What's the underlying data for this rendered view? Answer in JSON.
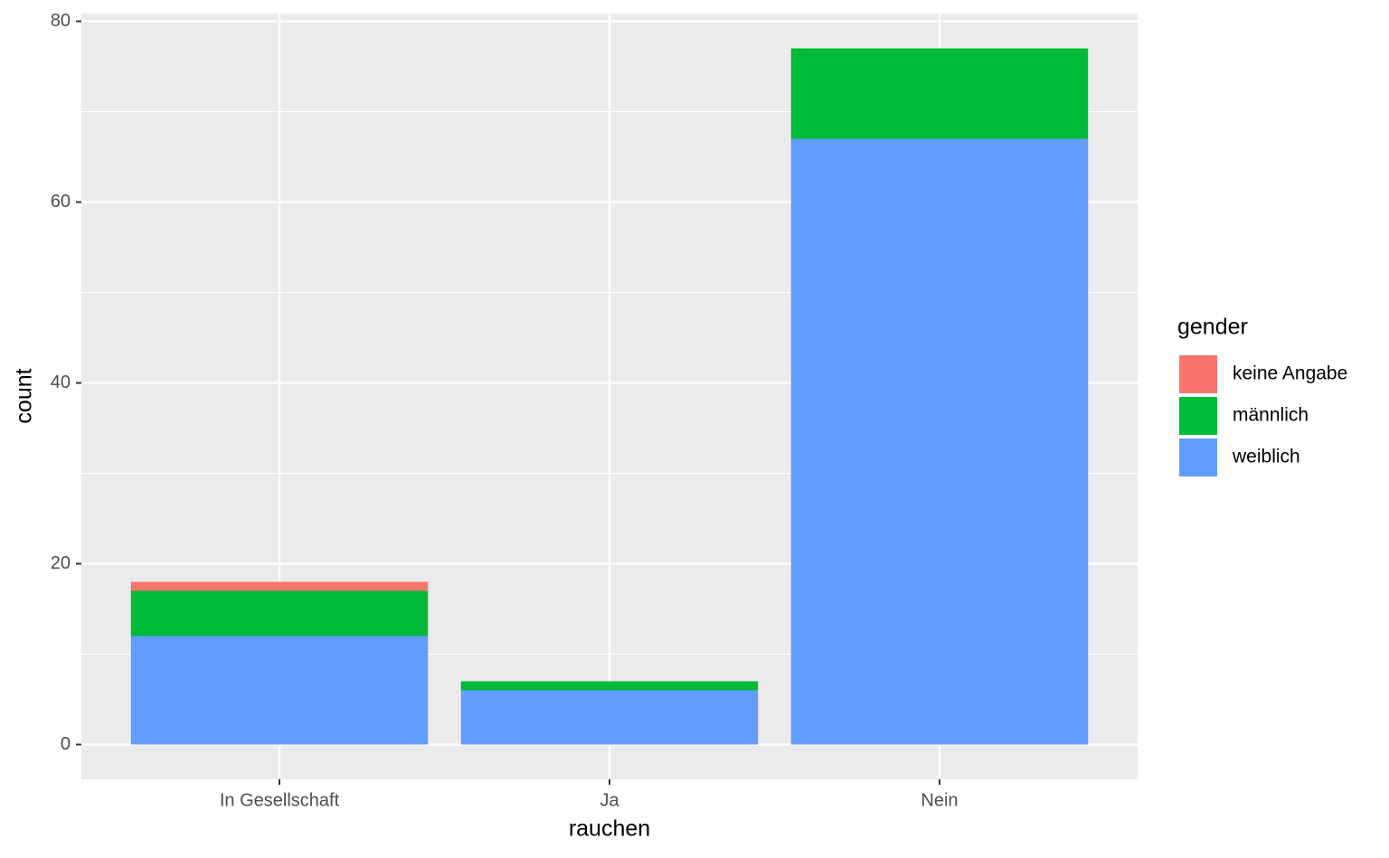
{
  "chart_data": {
    "type": "bar",
    "stacked": true,
    "x_label": "rauchen",
    "y_label": "count",
    "categories": [
      "In Gesellschaft",
      "Ja",
      "Nein"
    ],
    "series": [
      {
        "name": "keine Angabe",
        "color": "#F8766D",
        "values": [
          1,
          0,
          0
        ]
      },
      {
        "name": "männlich",
        "color": "#00BA38",
        "values": [
          5,
          1,
          10
        ]
      },
      {
        "name": "weiblich",
        "color": "#619CFF",
        "values": [
          12,
          6,
          67
        ]
      }
    ],
    "legend_title": "gender",
    "legend": "right",
    "ylim": [
      -3.85,
      80.85
    ],
    "yticks": [
      0,
      20,
      40,
      60,
      80
    ],
    "grid": true
  }
}
